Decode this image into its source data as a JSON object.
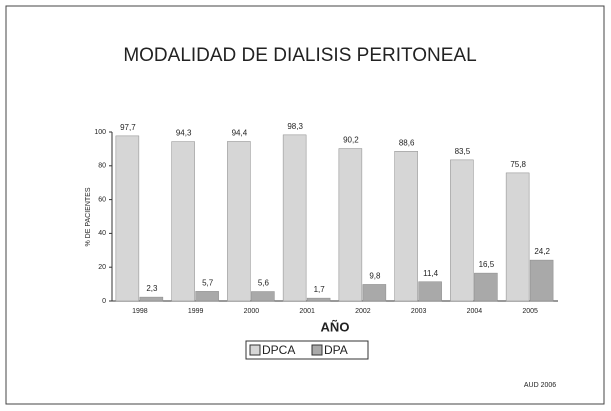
{
  "chart_data": {
    "type": "bar",
    "title": "MODALIDAD DE DIALISIS PERITONEAL",
    "x_label": "AÑO",
    "y_label": "% DE PACIENTES",
    "note": "AUD 2006",
    "categories": [
      "1998",
      "1999",
      "2000",
      "2001",
      "2002",
      "2003",
      "2004",
      "2005"
    ],
    "series": [
      {
        "name": "DPCA",
        "color": "#d6d6d6",
        "values": [
          97.7,
          94.3,
          94.4,
          98.3,
          90.2,
          88.6,
          83.5,
          75.8
        ],
        "value_labels": [
          "97,7",
          "94,3",
          "94,4",
          "98,3",
          "90,2",
          "88,6",
          "83,5",
          "75,8"
        ]
      },
      {
        "name": "DPA",
        "color": "#a9a9a9",
        "values": [
          2.3,
          5.7,
          5.6,
          1.7,
          9.8,
          11.4,
          16.5,
          24.2
        ],
        "value_labels": [
          "2,3",
          "5,7",
          "5,6",
          "1,7",
          "9,8",
          "11,4",
          "16,5",
          "24,2"
        ]
      }
    ],
    "ylim": [
      0,
      100
    ],
    "yticks": [
      0,
      20,
      40,
      60,
      80,
      100
    ],
    "legend": "bottom"
  }
}
